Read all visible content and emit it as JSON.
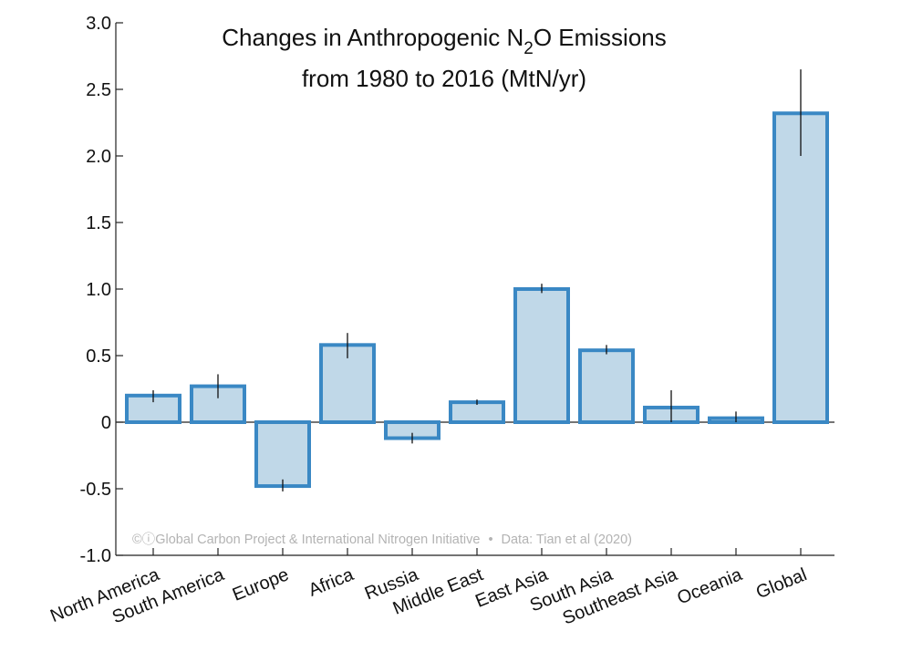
{
  "chart_data": {
    "type": "bar",
    "title_line1_main": "Changes in Anthropogenic N",
    "title_line1_sub": "2",
    "title_line1_tail": "O Emissions",
    "title_line2": "from 1980 to 2016 (MtN/yr)",
    "categories": [
      "North America",
      "South America",
      "Europe",
      "Africa",
      "Russia",
      "Middle East",
      "East Asia",
      "South Asia",
      "Southeast Asia",
      "Oceania",
      "Global"
    ],
    "values": [
      0.2,
      0.27,
      -0.48,
      0.58,
      -0.12,
      0.15,
      1.0,
      0.54,
      0.11,
      0.03,
      2.32
    ],
    "error_low": [
      0.15,
      0.18,
      -0.52,
      0.48,
      -0.16,
      0.13,
      0.97,
      0.51,
      0.0,
      0.0,
      2.0
    ],
    "error_high": [
      0.24,
      0.36,
      -0.43,
      0.67,
      -0.08,
      0.17,
      1.04,
      0.58,
      0.24,
      0.08,
      2.65
    ],
    "ylim": [
      -1.0,
      3.0
    ],
    "yticks": [
      "-1.0",
      "-0.5",
      "0",
      "0.5",
      "1.0",
      "1.5",
      "2.0",
      "2.5",
      "3.0"
    ],
    "xlabel": "",
    "ylabel": "",
    "bar_fill": "#c0d8e8",
    "bar_edge": "#3a88c4"
  },
  "credit": {
    "icons": "©ⓘ",
    "org": "Global Carbon Project & International Nitrogen Initiative",
    "separator": "•",
    "source": "Data: Tian et al (2020)"
  }
}
